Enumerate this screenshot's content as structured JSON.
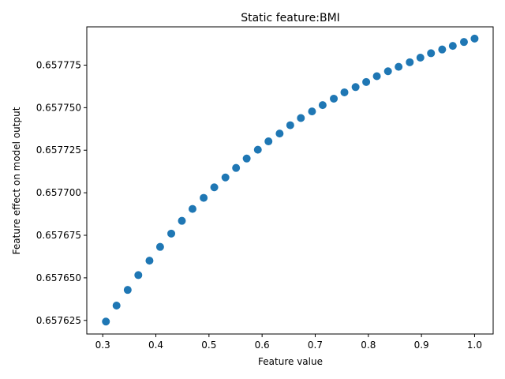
{
  "chart_data": {
    "type": "scatter",
    "title": "Static feature:BMI",
    "xlabel": "Feature value",
    "ylabel": "Feature effect on model output",
    "xlim": [
      0.27,
      1.035
    ],
    "ylim": [
      0.657617,
      0.6577975
    ],
    "xticks": [
      0.3,
      0.4,
      0.5,
      0.6,
      0.7,
      0.8,
      0.9,
      1.0
    ],
    "xtick_labels": [
      "0.3",
      "0.4",
      "0.5",
      "0.6",
      "0.7",
      "0.8",
      "0.9",
      "1.0"
    ],
    "yticks": [
      0.657625,
      0.65765,
      0.657675,
      0.6577,
      0.657725,
      0.65775,
      0.657775
    ],
    "ytick_labels": [
      "0.657625",
      "0.657650",
      "0.657675",
      "0.657700",
      "0.657725",
      "0.657750",
      "0.657775"
    ],
    "grid": false,
    "color": "#1f77b4",
    "x": [
      0.306,
      0.326,
      0.347,
      0.367,
      0.388,
      0.408,
      0.429,
      0.449,
      0.469,
      0.49,
      0.51,
      0.531,
      0.551,
      0.571,
      0.592,
      0.612,
      0.633,
      0.653,
      0.673,
      0.694,
      0.714,
      0.735,
      0.755,
      0.776,
      0.796,
      0.816,
      0.837,
      0.857,
      0.878,
      0.898,
      0.918,
      0.939,
      0.959,
      0.98,
      1.0
    ],
    "y": [
      0.6576243,
      0.6576337,
      0.6576429,
      0.6576516,
      0.6576601,
      0.6576682,
      0.657676,
      0.6576835,
      0.6576905,
      0.657697,
      0.6577032,
      0.657709,
      0.6577146,
      0.6577201,
      0.6577253,
      0.6577302,
      0.6577348,
      0.6577397,
      0.6577439,
      0.6577478,
      0.6577515,
      0.6577553,
      0.657759,
      0.6577621,
      0.6577651,
      0.6577685,
      0.6577714,
      0.657774,
      0.6577767,
      0.6577794,
      0.657782,
      0.6577842,
      0.6577863,
      0.6577886,
      0.6577906
    ]
  }
}
